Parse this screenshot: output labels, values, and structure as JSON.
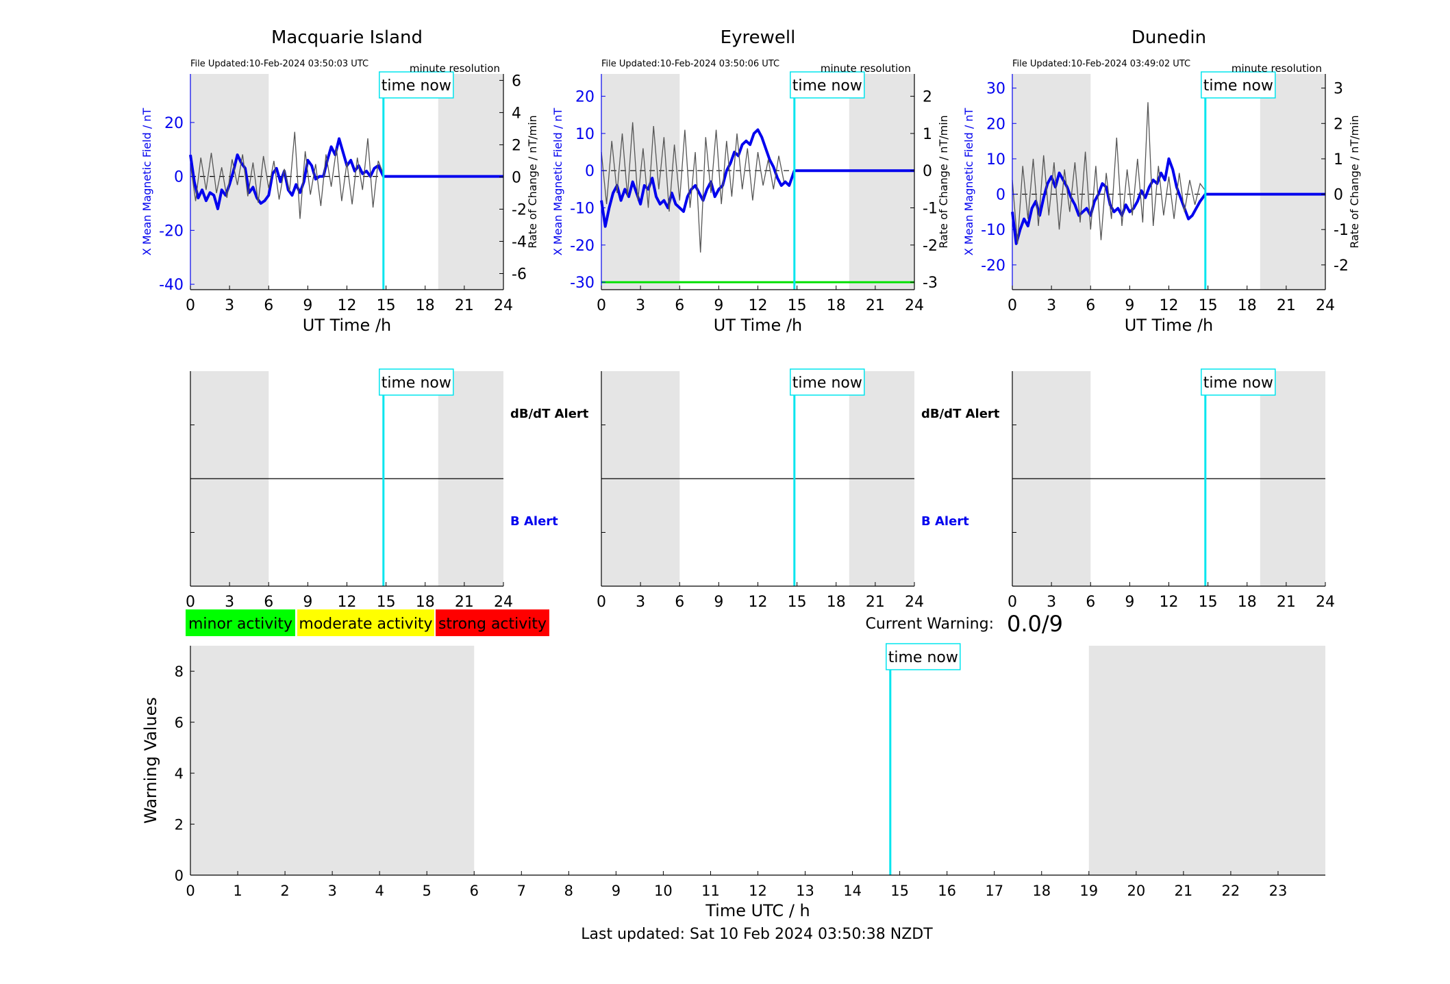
{
  "footer": {
    "last_updated": "Last updated: Sat 10 Feb 2024 03:50:38 NZDT"
  },
  "legend": {
    "items": [
      {
        "label": "minor activity",
        "color": "#00ff00"
      },
      {
        "label": "moderate activity",
        "color": "#ffff00"
      },
      {
        "label": "strong activity",
        "color": "#ff0000"
      }
    ]
  },
  "current_warning": {
    "label": "Current Warning:",
    "value": "0.0/9"
  },
  "time_now_label": "time now",
  "colors": {
    "field": "#0000ee",
    "rate": "#555555",
    "time_now": "#00e5ee",
    "shade": "#e5e5e5",
    "threshold": "#00e000"
  },
  "chart_data": [
    {
      "type": "line",
      "title": "Macquarie Island",
      "file_updated": "File Updated:10-Feb-2024 03:50:03 UTC",
      "resolution": "minute resolution",
      "xlabel": "UT Time /h",
      "ylabel": "X Mean Magnetic Field / nT",
      "ylabel_right": "Rate of Change / nT/min",
      "xlim": [
        0,
        24
      ],
      "xticks": [
        0,
        3,
        6,
        9,
        12,
        15,
        18,
        21,
        24
      ],
      "ylim": [
        -42,
        38
      ],
      "yticks": [
        -40,
        -20,
        0,
        20
      ],
      "ylim_right": [
        -7,
        6.4
      ],
      "yticks_right": [
        -6,
        -4,
        -2,
        0,
        2,
        4,
        6
      ],
      "time_now": 14.8,
      "shaded": [
        [
          0,
          6
        ],
        [
          19,
          24
        ]
      ],
      "series": [
        {
          "axis": "left",
          "x": [
            0,
            0.3,
            0.6,
            0.9,
            1.2,
            1.5,
            1.8,
            2.1,
            2.4,
            2.7,
            3.0,
            3.3,
            3.6,
            3.9,
            4.2,
            4.5,
            4.8,
            5.1,
            5.4,
            5.7,
            6.0,
            6.3,
            6.6,
            6.9,
            7.2,
            7.5,
            7.8,
            8.1,
            8.4,
            8.7,
            9.0,
            9.3,
            9.6,
            9.9,
            10.2,
            10.5,
            10.8,
            11.1,
            11.4,
            11.7,
            12.0,
            12.3,
            12.6,
            12.9,
            13.2,
            13.5,
            13.8,
            14.1,
            14.4,
            14.8,
            24
          ],
          "y": [
            8,
            -2,
            -8,
            -5,
            -9,
            -6,
            -7,
            -12,
            -5,
            -7,
            -3,
            2,
            8,
            5,
            3,
            -6,
            -4,
            -8,
            -10,
            -9,
            -7,
            1,
            3,
            -2,
            2,
            -5,
            -7,
            -3,
            -6,
            -2,
            6,
            4,
            -1,
            0,
            0,
            6,
            11,
            8,
            14,
            9,
            4,
            6,
            2,
            4,
            1,
            2,
            0,
            3,
            4,
            0,
            0
          ]
        },
        {
          "axis": "right",
          "x": [
            0,
            0.4,
            0.8,
            1.2,
            1.6,
            2.0,
            2.4,
            2.8,
            3.2,
            3.6,
            4.0,
            4.4,
            4.8,
            5.2,
            5.6,
            6.0,
            6.4,
            6.8,
            7.2,
            7.6,
            8.0,
            8.4,
            8.8,
            9.2,
            9.6,
            10.0,
            10.4,
            10.8,
            11.2,
            11.6,
            12.0,
            12.4,
            12.8,
            13.2,
            13.6,
            14.0,
            14.4,
            14.8
          ],
          "y": [
            0.8,
            -1.5,
            1.2,
            -0.8,
            1.5,
            -1.0,
            0.6,
            -1.3,
            1.1,
            -0.5,
            1.4,
            -1.2,
            0.9,
            -1.6,
            1.3,
            -0.7,
            1.0,
            -1.4,
            0.5,
            -0.9,
            2.8,
            -2.6,
            1.6,
            -1.1,
            0.8,
            -1.8,
            1.4,
            -0.6,
            1.8,
            -1.5,
            0.9,
            -1.7,
            1.2,
            -0.8,
            2.4,
            -1.9,
            1.0,
            0.2
          ]
        }
      ]
    },
    {
      "type": "line",
      "title": "Eyrewell",
      "file_updated": "File Updated:10-Feb-2024 03:50:06 UTC",
      "resolution": "minute resolution",
      "xlabel": "UT Time /h",
      "ylabel": "X Mean Magnetic Field / nT",
      "ylabel_right": "Rate of Change / nT/min",
      "xlim": [
        0,
        24
      ],
      "xticks": [
        0,
        3,
        6,
        9,
        12,
        15,
        18,
        21,
        24
      ],
      "ylim": [
        -32,
        26
      ],
      "yticks": [
        -30,
        -20,
        -10,
        0,
        10,
        20
      ],
      "ylim_right": [
        -3.2,
        2.6
      ],
      "yticks_right": [
        -3,
        -2,
        -1,
        0,
        1,
        2
      ],
      "time_now": 14.8,
      "shaded": [
        [
          0,
          6
        ],
        [
          19,
          24
        ]
      ],
      "threshold": -30,
      "series": [
        {
          "axis": "left",
          "x": [
            0,
            0.3,
            0.6,
            0.9,
            1.2,
            1.5,
            1.8,
            2.1,
            2.4,
            2.7,
            3.0,
            3.3,
            3.6,
            3.9,
            4.2,
            4.5,
            4.8,
            5.1,
            5.4,
            5.7,
            6.0,
            6.3,
            6.6,
            6.9,
            7.2,
            7.5,
            7.8,
            8.1,
            8.4,
            8.7,
            9.0,
            9.3,
            9.6,
            9.9,
            10.2,
            10.5,
            10.8,
            11.1,
            11.4,
            11.7,
            12.0,
            12.3,
            12.6,
            12.9,
            13.2,
            13.5,
            13.8,
            14.1,
            14.4,
            14.8,
            24
          ],
          "y": [
            -8,
            -15,
            -10,
            -6,
            -4,
            -8,
            -5,
            -7,
            -3,
            -6,
            -9,
            -4,
            -5,
            -2,
            -7,
            -9,
            -8,
            -10,
            -6,
            -9,
            -10,
            -11,
            -7,
            -5,
            -4,
            -6,
            -8,
            -5,
            -3,
            -7,
            -5,
            -4,
            0,
            2,
            5,
            4,
            7,
            8,
            7,
            10,
            11,
            9,
            6,
            3,
            1,
            -2,
            -4,
            -3,
            -4,
            0,
            0
          ]
        },
        {
          "axis": "right",
          "x": [
            0,
            0.4,
            0.8,
            1.2,
            1.6,
            2.0,
            2.4,
            2.8,
            3.2,
            3.6,
            4.0,
            4.4,
            4.8,
            5.2,
            5.6,
            6.0,
            6.4,
            6.8,
            7.2,
            7.6,
            8.0,
            8.4,
            8.8,
            9.2,
            9.6,
            10.0,
            10.4,
            10.8,
            11.2,
            11.6,
            12.0,
            12.4,
            12.8,
            13.2,
            13.6,
            14.0
          ],
          "y": [
            0.5,
            -0.9,
            0.8,
            -0.6,
            1.0,
            -0.7,
            1.3,
            -0.8,
            0.6,
            -1.0,
            1.2,
            -0.5,
            0.9,
            -1.1,
            0.7,
            -0.8,
            1.1,
            -1.0,
            0.5,
            -2.2,
            0.9,
            -0.6,
            1.1,
            -0.9,
            0.8,
            -0.7,
            1.0,
            -0.5,
            0.6,
            -0.8,
            0.5,
            -0.4,
            0.3,
            -0.5,
            0.4,
            -0.3
          ]
        }
      ]
    },
    {
      "type": "line",
      "title": "Dunedin",
      "file_updated": "File Updated:10-Feb-2024 03:49:02 UTC",
      "resolution": "minute resolution",
      "xlabel": "UT Time /h",
      "ylabel": "X Mean Magnetic Field / nT",
      "ylabel_right": "Rate of Change / nT/min",
      "xlim": [
        0,
        24
      ],
      "xticks": [
        0,
        3,
        6,
        9,
        12,
        15,
        18,
        21,
        24
      ],
      "ylim": [
        -27,
        34
      ],
      "yticks": [
        -20,
        -10,
        0,
        10,
        20,
        30
      ],
      "ylim_right": [
        -2.7,
        3.4
      ],
      "yticks_right": [
        -2,
        -1,
        0,
        1,
        2,
        3
      ],
      "time_now": 14.8,
      "shaded": [
        [
          0,
          6
        ],
        [
          19,
          24
        ]
      ],
      "series": [
        {
          "axis": "left",
          "x": [
            0,
            0.3,
            0.6,
            0.9,
            1.2,
            1.5,
            1.8,
            2.1,
            2.4,
            2.7,
            3.0,
            3.3,
            3.6,
            3.9,
            4.2,
            4.5,
            4.8,
            5.1,
            5.4,
            5.7,
            6.0,
            6.3,
            6.6,
            6.9,
            7.2,
            7.5,
            7.8,
            8.1,
            8.4,
            8.7,
            9.0,
            9.3,
            9.6,
            9.9,
            10.2,
            10.5,
            10.8,
            11.1,
            11.4,
            11.7,
            12.0,
            12.3,
            12.6,
            12.9,
            13.2,
            13.5,
            13.8,
            14.1,
            14.4,
            14.8,
            24
          ],
          "y": [
            -5,
            -14,
            -10,
            -7,
            -9,
            -4,
            -2,
            -6,
            -1,
            3,
            5,
            2,
            6,
            4,
            2,
            -1,
            -3,
            -6,
            -5,
            -4,
            -6,
            -2,
            0,
            3,
            2,
            -3,
            -5,
            -4,
            -6,
            -3,
            -5,
            -4,
            -2,
            1,
            -1,
            2,
            4,
            3,
            6,
            4,
            10,
            7,
            2,
            -1,
            -4,
            -7,
            -6,
            -4,
            -2,
            0,
            0
          ]
        },
        {
          "axis": "right",
          "x": [
            0,
            0.4,
            0.8,
            1.2,
            1.6,
            2.0,
            2.4,
            2.8,
            3.2,
            3.6,
            4.0,
            4.4,
            4.8,
            5.2,
            5.6,
            6.0,
            6.4,
            6.8,
            7.2,
            7.6,
            8.0,
            8.4,
            8.8,
            9.2,
            9.6,
            10.0,
            10.4,
            10.8,
            11.2,
            11.6,
            12.0,
            12.4,
            12.8,
            13.2,
            13.6,
            14.0,
            14.4,
            14.8
          ],
          "y": [
            0.4,
            -1.4,
            0.8,
            -0.7,
            1.0,
            -0.9,
            1.1,
            -0.6,
            0.9,
            -1.0,
            0.7,
            -0.5,
            0.9,
            -0.8,
            1.2,
            -1.0,
            0.8,
            -1.3,
            0.6,
            -0.7,
            1.6,
            -0.9,
            0.7,
            -0.6,
            1.0,
            -0.8,
            2.6,
            -0.9,
            0.8,
            -0.6,
            0.5,
            -0.7,
            0.6,
            -0.5,
            0.4,
            -0.3,
            0.3,
            0.1
          ]
        }
      ]
    },
    {
      "type": "line",
      "xlim": [
        0,
        24
      ],
      "xticks": [
        0,
        3,
        6,
        9,
        12,
        15,
        18,
        21,
        24
      ],
      "time_now": 14.8,
      "shaded": [
        [
          0,
          6
        ],
        [
          19,
          24
        ]
      ],
      "labels": [
        {
          "text": "dB/dT Alert",
          "color": "#000000"
        },
        {
          "text": "B Alert",
          "color": "#0000ee"
        }
      ]
    },
    {
      "type": "line",
      "xlim": [
        0,
        24
      ],
      "xticks": [
        0,
        3,
        6,
        9,
        12,
        15,
        18,
        21,
        24
      ],
      "time_now": 14.8,
      "shaded": [
        [
          0,
          6
        ],
        [
          19,
          24
        ]
      ],
      "labels": [
        {
          "text": "dB/dT Alert",
          "color": "#000000"
        },
        {
          "text": "B Alert",
          "color": "#0000ee"
        }
      ]
    },
    {
      "type": "line",
      "xlim": [
        0,
        24
      ],
      "xticks": [
        0,
        3,
        6,
        9,
        12,
        15,
        18,
        21,
        24
      ],
      "time_now": 14.8,
      "shaded": [
        [
          0,
          6
        ],
        [
          19,
          24
        ]
      ],
      "labels": []
    },
    {
      "type": "bar",
      "xlabel": "Time UTC / h",
      "ylabel": "Warning Values",
      "xlim": [
        0,
        24
      ],
      "xticks": [
        0,
        1,
        2,
        3,
        4,
        5,
        6,
        7,
        8,
        9,
        10,
        11,
        12,
        13,
        14,
        15,
        16,
        17,
        18,
        19,
        20,
        21,
        22,
        23
      ],
      "ylim": [
        0,
        9
      ],
      "yticks": [
        0,
        2,
        4,
        6,
        8
      ],
      "time_now": 14.8,
      "shaded": [
        [
          0,
          6
        ],
        [
          19,
          24
        ]
      ],
      "values": []
    }
  ]
}
